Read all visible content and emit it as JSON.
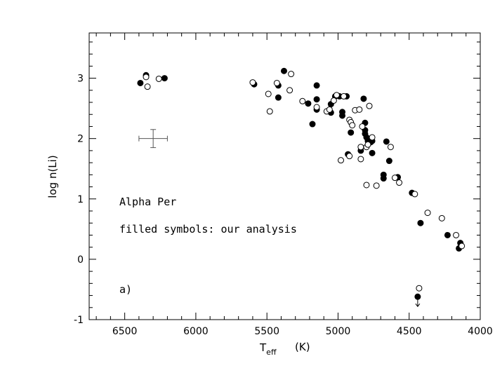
{
  "chart_data": {
    "type": "scatter",
    "xlabel": "T",
    "xlabel_sub": "eff",
    "xlabel_unit": "(K)",
    "ylabel": "log n(Li)",
    "xlim": [
      6750,
      4000
    ],
    "ylim": [
      -1,
      3.75
    ],
    "x_ticks": [
      6500,
      6000,
      5500,
      5000,
      4500,
      4000
    ],
    "y_ticks": [
      -1,
      0,
      1,
      2,
      3
    ],
    "annotations": {
      "cluster": "Alpha Per",
      "legend_note": "filled symbols: our analysis",
      "panel": "a)"
    },
    "error_bar": {
      "x": 6300,
      "y": 2.0,
      "x_err": 100,
      "y_err": 0.15
    },
    "series": [
      {
        "style": "filled",
        "points": [
          [
            6390,
            2.92
          ],
          [
            6350,
            3.05
          ],
          [
            6220,
            3.0
          ],
          [
            5590,
            2.9
          ],
          [
            5420,
            2.88
          ],
          [
            5420,
            2.68
          ],
          [
            5380,
            3.12
          ],
          [
            5210,
            2.58
          ],
          [
            5180,
            2.24
          ],
          [
            5150,
            2.88
          ],
          [
            5150,
            2.65
          ],
          [
            5150,
            2.48
          ],
          [
            5050,
            2.57
          ],
          [
            5050,
            2.43
          ],
          [
            5020,
            2.7
          ],
          [
            4990,
            2.7
          ],
          [
            4970,
            2.44
          ],
          [
            4970,
            2.38
          ],
          [
            4940,
            2.7
          ],
          [
            4930,
            1.74
          ],
          [
            4910,
            2.1
          ],
          [
            4840,
            1.8
          ],
          [
            4820,
            2.66
          ],
          [
            4810,
            2.26
          ],
          [
            4810,
            2.14
          ],
          [
            4810,
            2.08
          ],
          [
            4800,
            2.02
          ],
          [
            4790,
            1.96
          ],
          [
            4770,
            1.94
          ],
          [
            4760,
            1.96
          ],
          [
            4760,
            1.76
          ],
          [
            4680,
            1.4
          ],
          [
            4680,
            1.34
          ],
          [
            4660,
            1.95
          ],
          [
            4640,
            1.63
          ],
          [
            4580,
            1.36
          ],
          [
            4480,
            1.1
          ],
          [
            4420,
            0.6
          ],
          [
            4230,
            0.4
          ],
          [
            4150,
            0.18
          ],
          [
            4140,
            0.27
          ],
          [
            4440,
            -0.62
          ]
        ]
      },
      {
        "style": "open",
        "points": [
          [
            6350,
            3.02
          ],
          [
            6340,
            2.86
          ],
          [
            6260,
            2.99
          ],
          [
            5600,
            2.93
          ],
          [
            5490,
            2.74
          ],
          [
            5480,
            2.45
          ],
          [
            5430,
            2.92
          ],
          [
            5330,
            3.07
          ],
          [
            5340,
            2.8
          ],
          [
            5250,
            2.62
          ],
          [
            5150,
            2.52
          ],
          [
            5080,
            2.45
          ],
          [
            5060,
            2.48
          ],
          [
            5030,
            2.63
          ],
          [
            5010,
            2.72
          ],
          [
            4980,
            1.64
          ],
          [
            4960,
            2.7
          ],
          [
            4920,
            2.31
          ],
          [
            4910,
            2.27
          ],
          [
            4900,
            2.22
          ],
          [
            4920,
            1.71
          ],
          [
            4880,
            2.47
          ],
          [
            4850,
            2.48
          ],
          [
            4840,
            1.86
          ],
          [
            4840,
            1.66
          ],
          [
            4830,
            2.2
          ],
          [
            4800,
            1.86
          ],
          [
            4790,
            1.9
          ],
          [
            4780,
            2.54
          ],
          [
            4800,
            1.23
          ],
          [
            4760,
            2.02
          ],
          [
            4730,
            1.22
          ],
          [
            4630,
            1.86
          ],
          [
            4600,
            1.35
          ],
          [
            4570,
            1.27
          ],
          [
            4460,
            1.08
          ],
          [
            4370,
            0.77
          ],
          [
            4270,
            0.68
          ],
          [
            4170,
            0.4
          ],
          [
            4130,
            0.22
          ],
          [
            4430,
            -0.48
          ]
        ]
      }
    ],
    "upper_limit_arrow": {
      "x": 4440,
      "y": -0.62
    }
  }
}
